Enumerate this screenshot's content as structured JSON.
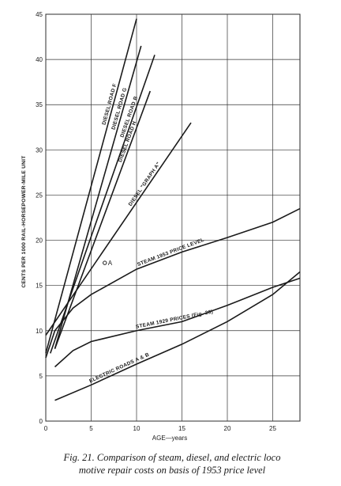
{
  "chart_data": {
    "type": "line",
    "xlabel": "AGE—years",
    "ylabel": "CENTS PER 1000 RAIL-HORSEPOWER-MILE UNIT",
    "caption": [
      "Fig. 21. Comparison of steam, diesel, and electric loco",
      "motive repair costs on basis of 1953 price level"
    ],
    "xlim": [
      0,
      28
    ],
    "ylim": [
      0,
      45
    ],
    "xticks": [
      0,
      5,
      10,
      15,
      20,
      25
    ],
    "yticks": [
      0,
      5,
      10,
      15,
      20,
      25,
      30,
      35,
      40,
      45
    ],
    "grid": true,
    "color": "#1a1a1a",
    "series": [
      {
        "name": "DIESEL ROAD F",
        "x": [
          0,
          10
        ],
        "values": [
          7.5,
          44.5
        ]
      },
      {
        "name": "DIESEL ROAD G",
        "x": [
          1,
          10.5
        ],
        "values": [
          8,
          41.5
        ]
      },
      {
        "name": "DIESEL ROAD B",
        "x": [
          0.5,
          12
        ],
        "values": [
          7.5,
          40.5
        ]
      },
      {
        "name": "DIESEL ROAD H",
        "x": [
          1,
          11.5
        ],
        "values": [
          8,
          36.5
        ]
      },
      {
        "name": "DIESEL \"GRAPH A\"",
        "x": [
          0,
          16
        ],
        "values": [
          9.5,
          33
        ]
      },
      {
        "name": "STEAM 1953 PRICE LEVEL",
        "x": [
          0,
          1,
          3,
          5,
          10,
          15,
          20,
          25,
          28
        ],
        "values": [
          7,
          10,
          12.5,
          14,
          16.8,
          18.7,
          20.3,
          22,
          23.5
        ]
      },
      {
        "name": "STEAM 1929 PRICES (Fig. 20)",
        "x": [
          1,
          3,
          5,
          10,
          15,
          20,
          25,
          28
        ],
        "values": [
          6,
          7.8,
          8.8,
          10,
          11,
          12.8,
          14.8,
          15.8
        ]
      },
      {
        "name": "ELECTRIC ROADS A & B",
        "x": [
          1,
          5,
          10,
          15,
          20,
          25,
          28
        ],
        "values": [
          2.3,
          4,
          6.3,
          8.5,
          11,
          14,
          16.5
        ]
      }
    ],
    "annotations": [
      {
        "text": "A",
        "x": 6.5,
        "y": 17.5
      }
    ]
  }
}
